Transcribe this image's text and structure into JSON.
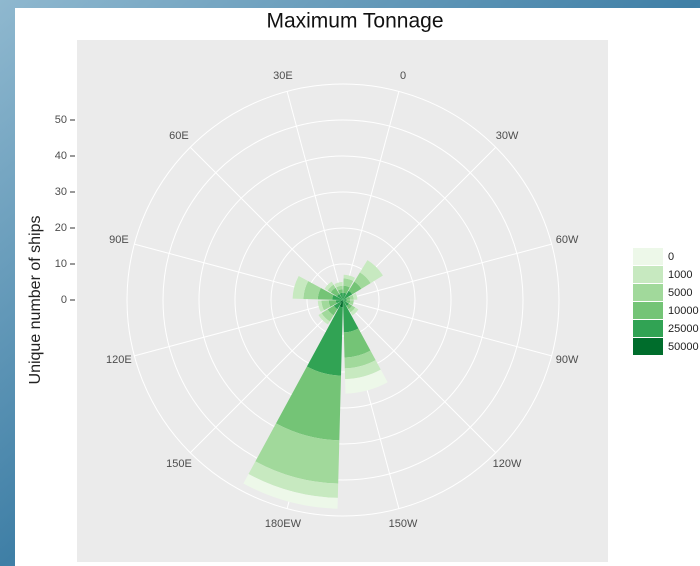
{
  "chart_data": {
    "type": "polar_stacked_bar",
    "title": "Maximum Tonnage",
    "y_label": "Unique number of ships",
    "categories": [
      "0",
      "30W",
      "60W",
      "90W",
      "120W",
      "150W",
      "180EW",
      "150E",
      "120E",
      "90E",
      "60E",
      "30E"
    ],
    "series": [
      {
        "name": "0",
        "color": "#edf8e9",
        "values": [
          0,
          0,
          0,
          0,
          0,
          4,
          3,
          0,
          0,
          0,
          0,
          0
        ]
      },
      {
        "name": "1000",
        "color": "#c7e9c0",
        "values": [
          1,
          4,
          1,
          0,
          1,
          3,
          4,
          1,
          1,
          3,
          1,
          1
        ]
      },
      {
        "name": "5000",
        "color": "#a1d99b",
        "values": [
          2,
          3,
          1,
          1,
          1,
          3,
          12,
          2,
          2,
          4,
          1,
          1
        ]
      },
      {
        "name": "10000",
        "color": "#74c476",
        "values": [
          2,
          3,
          1,
          1,
          1,
          7,
          18,
          2,
          2,
          4,
          2,
          1
        ]
      },
      {
        "name": "25000",
        "color": "#31a354",
        "values": [
          2,
          3,
          1,
          1,
          2,
          9,
          19,
          2,
          2,
          3,
          2,
          2
        ]
      },
      {
        "name": "50000",
        "color": "#006d2c",
        "values": [
          0,
          0,
          0,
          0,
          0,
          0,
          2,
          1,
          0,
          0,
          0,
          0
        ]
      }
    ],
    "ylim": [
      0,
      60
    ],
    "yticks": [
      0,
      10,
      20,
      30,
      40,
      50
    ],
    "grid": true
  }
}
